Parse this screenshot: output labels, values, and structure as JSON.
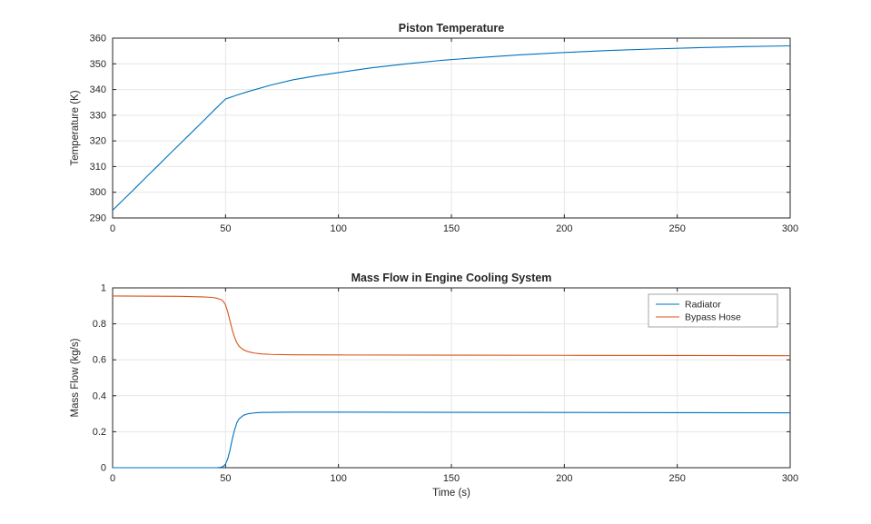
{
  "figure": {
    "background": "#ffffff",
    "axis_color": "#262626",
    "grid_color": "#e6e6e6",
    "legend_border_color": "#a6a6a6"
  },
  "chart_data": [
    {
      "type": "line",
      "title": "Piston Temperature",
      "xlabel": "",
      "ylabel": "Temperature (K)",
      "xlim": [
        0,
        300
      ],
      "ylim": [
        290,
        360
      ],
      "xticks": [
        0,
        50,
        100,
        150,
        200,
        250,
        300
      ],
      "yticks": [
        290,
        300,
        310,
        320,
        330,
        340,
        350,
        360
      ],
      "grid": true,
      "legend": null,
      "series": [
        {
          "name": "Piston Temperature",
          "color": "#0072BD",
          "x": [
            0,
            5,
            10,
            15,
            20,
            25,
            30,
            35,
            40,
            45,
            50,
            55,
            60,
            70,
            80,
            90,
            100,
            115,
            130,
            145,
            160,
            180,
            200,
            220,
            240,
            260,
            280,
            300
          ],
          "y": [
            293,
            297.3,
            301.6,
            306,
            310.3,
            314.7,
            319,
            323.3,
            327.6,
            332,
            336.3,
            337.8,
            339.2,
            341.7,
            343.8,
            345.3,
            346.6,
            348.5,
            350,
            351.3,
            352.3,
            353.5,
            354.4,
            355.2,
            355.8,
            356.3,
            356.7,
            357
          ]
        }
      ]
    },
    {
      "type": "line",
      "title": "Mass Flow in Engine Cooling System",
      "xlabel": "Time (s)",
      "ylabel": "Mass Flow (kg/s)",
      "xlim": [
        0,
        300
      ],
      "ylim": [
        0,
        1
      ],
      "xticks": [
        0,
        50,
        100,
        150,
        200,
        250,
        300
      ],
      "yticks": [
        0,
        0.2,
        0.4,
        0.6,
        0.8,
        1
      ],
      "grid": true,
      "legend": {
        "position": "top-right",
        "entries": [
          "Radiator",
          "Bypass Hose"
        ]
      },
      "series": [
        {
          "name": "Radiator",
          "color": "#0072BD",
          "x": [
            0,
            40,
            46,
            48,
            49,
            50,
            51,
            52,
            53,
            54,
            55,
            56,
            58,
            60,
            63,
            66,
            70,
            80,
            100,
            150,
            200,
            250,
            300
          ],
          "y": [
            0,
            0,
            0,
            0.002,
            0.008,
            0.02,
            0.05,
            0.1,
            0.16,
            0.21,
            0.25,
            0.272,
            0.292,
            0.3,
            0.305,
            0.307,
            0.308,
            0.309,
            0.309,
            0.308,
            0.307,
            0.306,
            0.305
          ]
        },
        {
          "name": "Bypass Hose",
          "color": "#D95319",
          "x": [
            0,
            30,
            40,
            44,
            46,
            48,
            49,
            50,
            51,
            52,
            53,
            54,
            55,
            56,
            58,
            60,
            63,
            66,
            70,
            80,
            100,
            150,
            200,
            250,
            300
          ],
          "y": [
            0.955,
            0.953,
            0.95,
            0.947,
            0.943,
            0.935,
            0.925,
            0.905,
            0.865,
            0.815,
            0.765,
            0.725,
            0.695,
            0.675,
            0.655,
            0.645,
            0.637,
            0.633,
            0.63,
            0.628,
            0.627,
            0.626,
            0.625,
            0.624,
            0.623
          ]
        }
      ]
    }
  ]
}
